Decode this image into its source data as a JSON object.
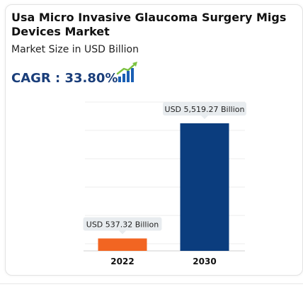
{
  "title": "Usa Micro Invasive Glaucoma Surgery Migs Devices Market",
  "subtitle": "Market Size in USD Billion",
  "cagr": {
    "label": "CAGR : 33.80%",
    "icon": "growth-chart-icon"
  },
  "colors": {
    "bar_2022": "#f26522",
    "bar_2030": "#0b3d7e",
    "label_box": "#e8ecef",
    "cagr_text": "#1a3e7a"
  },
  "chart_data": {
    "type": "bar",
    "categories": [
      "2022",
      "2030"
    ],
    "values": [
      537.32,
      5519.27
    ],
    "value_labels": [
      "USD 537.32 Billion",
      "USD 5,519.27 Billion"
    ],
    "ylim": [
      0,
      5519.27
    ],
    "grid": true,
    "xlabel": "",
    "ylabel": ""
  }
}
